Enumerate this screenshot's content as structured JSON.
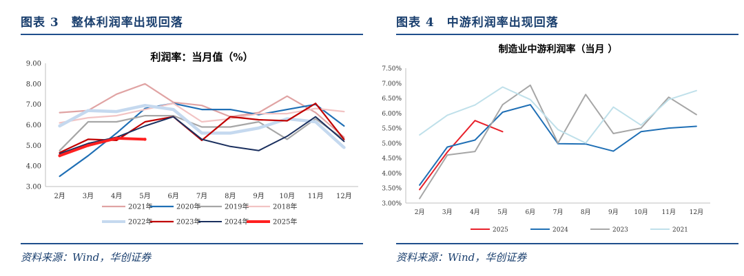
{
  "left": {
    "figure_title_num": "图表 3",
    "figure_title_text": "整体利润率出现回落",
    "source": "资料来源：Wind，华创证券"
  },
  "right": {
    "figure_title_num": "图表 4",
    "figure_title_text": "中游利润率出现回落",
    "source": "资料来源：Wind，华创证券"
  },
  "chart_data": [
    {
      "type": "line",
      "title": "利润率：当月值（%）",
      "categories": [
        "2月",
        "3月",
        "4月",
        "5月",
        "6月",
        "7月",
        "8月",
        "9月",
        "10月",
        "11月",
        "12月"
      ],
      "ylim": [
        3.0,
        9.0
      ],
      "yticks": [
        "3.00",
        "4.00",
        "5.00",
        "6.00",
        "7.00",
        "8.00",
        "9.00"
      ],
      "legend_position": "bottom",
      "grid": false,
      "series": [
        {
          "name": "2021年",
          "color": "#e0a3a3",
          "width": 2.2,
          "values": [
            6.6,
            6.7,
            7.5,
            8.0,
            7.1,
            6.95,
            6.4,
            6.6,
            7.4,
            6.6,
            5.4
          ]
        },
        {
          "name": "2020年",
          "color": "#1f6fb5",
          "width": 2.2,
          "values": [
            3.5,
            4.5,
            5.6,
            6.8,
            7.05,
            6.75,
            6.75,
            6.5,
            6.75,
            7.0,
            5.95
          ]
        },
        {
          "name": "2019年",
          "color": "#a6a6a6",
          "width": 2.2,
          "values": [
            4.75,
            6.15,
            6.15,
            6.45,
            6.45,
            5.9,
            5.9,
            6.15,
            5.3,
            6.3,
            5.3
          ]
        },
        {
          "name": "2018年",
          "color": "#f2c3c3",
          "width": 2.2,
          "values": [
            6.1,
            6.35,
            6.45,
            6.75,
            7.05,
            6.15,
            6.3,
            6.55,
            6.55,
            6.8,
            6.65
          ]
        },
        {
          "name": "2022年",
          "color": "#c5d9ef",
          "width": 4.5,
          "values": [
            5.95,
            6.7,
            6.65,
            6.95,
            6.75,
            5.6,
            5.6,
            5.85,
            6.3,
            6.15,
            4.9
          ]
        },
        {
          "name": "2023年",
          "color": "#c00000",
          "width": 2.2,
          "values": [
            4.65,
            5.3,
            5.25,
            6.15,
            6.4,
            5.25,
            6.4,
            6.25,
            6.2,
            7.05,
            5.3
          ]
        },
        {
          "name": "2024年",
          "color": "#1a2f5e",
          "width": 2.0,
          "values": [
            4.6,
            5.1,
            5.4,
            5.95,
            6.4,
            5.3,
            4.95,
            4.75,
            5.45,
            6.4,
            5.2
          ]
        },
        {
          "name": "2025年",
          "color": "#ff2020",
          "width": 4.0,
          "values": [
            4.5,
            5.0,
            5.35,
            5.3,
            null,
            null,
            null,
            null,
            null,
            null,
            null
          ]
        }
      ]
    },
    {
      "type": "line",
      "title": "制造业中游利润率（当月 ）",
      "categories": [
        "2月",
        "3月",
        "4月",
        "5月",
        "6月",
        "7月",
        "8月",
        "9月",
        "10月",
        "11月",
        "12月"
      ],
      "ylim": [
        3.0,
        7.5
      ],
      "yticks": [
        "3.00%",
        "3.50%",
        "4.00%",
        "4.50%",
        "5.00%",
        "5.50%",
        "6.00%",
        "6.50%",
        "7.00%",
        "7.50%"
      ],
      "legend_position": "bottom",
      "grid": false,
      "series": [
        {
          "name": "2025",
          "color": "#e8202a",
          "width": 2.0,
          "values": [
            3.45,
            4.7,
            5.75,
            5.38,
            null,
            null,
            null,
            null,
            null,
            null,
            null
          ]
        },
        {
          "name": "2024",
          "color": "#1f6fb5",
          "width": 2.0,
          "values": [
            3.6,
            4.87,
            5.1,
            6.03,
            6.28,
            4.98,
            4.97,
            4.73,
            5.38,
            5.5,
            5.56
          ]
        },
        {
          "name": "2023",
          "color": "#a6a6a6",
          "width": 2.0,
          "values": [
            3.15,
            4.6,
            4.72,
            6.28,
            6.93,
            5.0,
            6.62,
            5.32,
            5.5,
            6.53,
            5.95
          ]
        },
        {
          "name": "2021",
          "color": "#bfe0ea",
          "width": 2.0,
          "values": [
            5.27,
            5.93,
            6.27,
            6.87,
            6.45,
            5.45,
            5.0,
            6.2,
            5.6,
            6.45,
            6.75
          ]
        }
      ]
    }
  ]
}
